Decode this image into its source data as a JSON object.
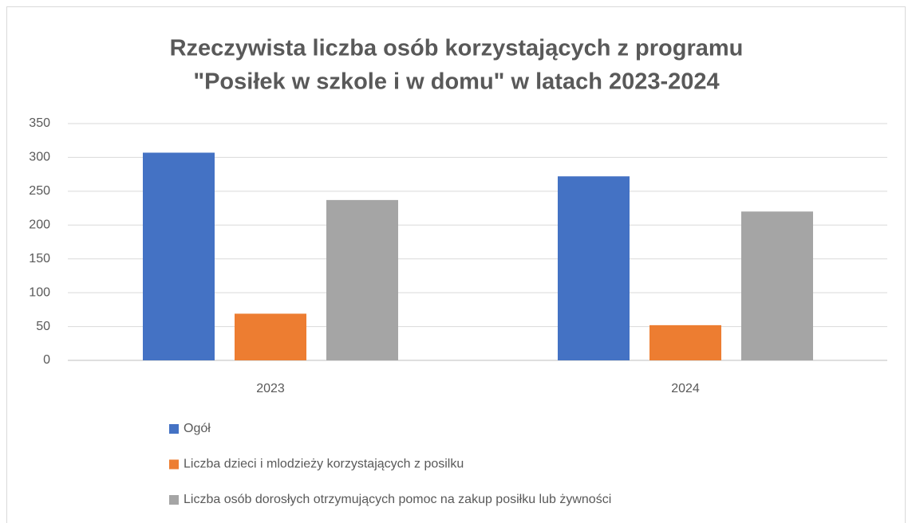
{
  "chart_data": {
    "type": "bar",
    "title": [
      "Rzeczywista liczba osób korzystających z programu",
      "\"Posiłek w szkole i w domu\" w latach 2023-2024"
    ],
    "categories": [
      "2023",
      "2024"
    ],
    "series": [
      {
        "name": "Ogół",
        "color": "#4472c4",
        "values": [
          307,
          272
        ]
      },
      {
        "name": "Liczba dzieci i mlodzieży korzystających z posilku",
        "color": "#ed7d31",
        "values": [
          69,
          52
        ]
      },
      {
        "name": "Liczba osób dorosłych otrzymujących pomoc na zakup posiłku lub żywności",
        "color": "#a5a5a5",
        "values": [
          237,
          220
        ]
      }
    ],
    "ylim": [
      0,
      350
    ],
    "yticks": [
      0,
      50,
      100,
      150,
      200,
      250,
      300,
      350
    ],
    "grid": true,
    "legend": "bottom"
  }
}
